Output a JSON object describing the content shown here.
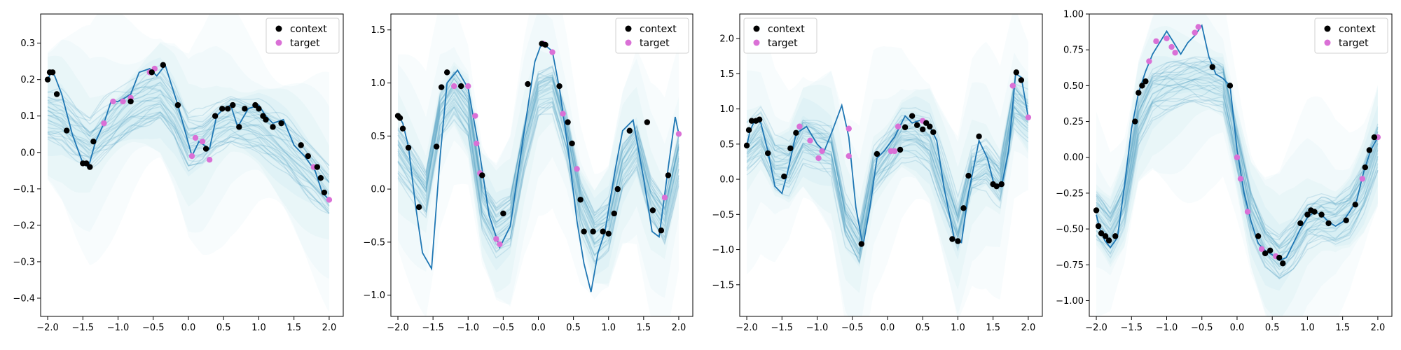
{
  "chart_data": [
    {
      "type": "line",
      "xlim": [
        -2.1,
        2.2
      ],
      "ylim": [
        -0.45,
        0.38
      ],
      "xticks": [
        -2.0,
        -1.5,
        -1.0,
        -0.5,
        0.0,
        0.5,
        1.0,
        1.5,
        2.0
      ],
      "xtick_labels": [
        "−2.0",
        "−1.5",
        "−1.0",
        "−0.5",
        "0.0",
        "0.5",
        "1.0",
        "1.5",
        "2.0"
      ],
      "yticks": [
        -0.4,
        -0.3,
        -0.2,
        -0.1,
        0.0,
        0.1,
        0.2,
        0.3
      ],
      "ytick_labels": [
        "−0.4",
        "−0.3",
        "−0.2",
        "−0.1",
        "0.0",
        "0.1",
        "0.2",
        "0.3"
      ],
      "legend": {
        "placement": "top-right",
        "entries": [
          "context",
          "target"
        ]
      },
      "colors": {
        "context": "#000000",
        "target": "#da70d6",
        "truth": "#1f77b4",
        "samples": "#2e86b5",
        "band": "#bfe6ee"
      },
      "samples": 28,
      "truth": {
        "x": [
          -2.0,
          -1.95,
          -1.9,
          -1.8,
          -1.65,
          -1.5,
          -1.42,
          -1.32,
          -1.2,
          -1.1,
          -1.0,
          -0.9,
          -0.82,
          -0.7,
          -0.55,
          -0.45,
          -0.33,
          -0.15,
          0.05,
          0.15,
          0.3,
          0.4,
          0.5,
          0.6,
          0.7,
          0.85,
          1.0,
          1.1,
          1.2,
          1.35,
          1.5,
          1.65,
          1.8,
          1.9,
          2.0
        ],
        "y": [
          0.2,
          0.22,
          0.21,
          0.16,
          0.05,
          -0.03,
          -0.04,
          0.03,
          0.08,
          0.14,
          0.14,
          0.15,
          0.16,
          0.22,
          0.23,
          0.21,
          0.24,
          0.13,
          -0.01,
          0.03,
          0.01,
          0.1,
          0.12,
          0.13,
          0.07,
          0.12,
          0.13,
          0.1,
          0.08,
          0.09,
          0.02,
          -0.01,
          -0.05,
          -0.11,
          -0.13
        ]
      },
      "mean": {
        "x": [
          -2.0,
          -1.8,
          -1.6,
          -1.4,
          -1.2,
          -1.0,
          -0.8,
          -0.6,
          -0.4,
          -0.2,
          0.0,
          0.2,
          0.4,
          0.6,
          0.8,
          1.0,
          1.2,
          1.4,
          1.6,
          1.8,
          2.0
        ],
        "y": [
          0.1,
          0.09,
          0.05,
          0.02,
          0.06,
          0.09,
          0.12,
          0.14,
          0.15,
          0.1,
          0.02,
          0.03,
          0.07,
          0.09,
          0.08,
          0.07,
          0.04,
          0.01,
          -0.03,
          -0.07,
          -0.11
        ]
      },
      "context_points": {
        "x": [
          -2.0,
          -1.97,
          -1.93,
          -1.87,
          -1.73,
          -1.5,
          -1.45,
          -1.4,
          -1.35,
          -0.82,
          -0.52,
          -0.36,
          -0.15,
          0.25,
          0.38,
          0.48,
          0.56,
          0.63,
          0.72,
          0.8,
          0.95,
          1.0,
          1.06,
          1.1,
          1.2,
          1.32,
          1.6,
          1.7,
          1.83,
          1.88,
          1.93
        ],
        "y": [
          0.2,
          0.22,
          0.22,
          0.16,
          0.06,
          -0.03,
          -0.03,
          -0.04,
          0.03,
          0.14,
          0.22,
          0.24,
          0.13,
          0.01,
          0.1,
          0.12,
          0.12,
          0.13,
          0.07,
          0.12,
          0.13,
          0.12,
          0.1,
          0.09,
          0.07,
          0.08,
          0.02,
          -0.01,
          -0.04,
          -0.07,
          -0.11
        ]
      },
      "target_points": {
        "x": [
          -1.2,
          -1.07,
          -0.93,
          -0.82,
          -0.55,
          -0.48,
          0.05,
          0.1,
          0.2,
          0.3,
          1.78,
          2.0
        ],
        "y": [
          0.08,
          0.14,
          0.14,
          0.15,
          0.22,
          0.23,
          -0.01,
          0.04,
          0.03,
          -0.02,
          -0.04,
          -0.13
        ]
      }
    },
    {
      "type": "line",
      "xlim": [
        -2.1,
        2.2
      ],
      "ylim": [
        -1.2,
        1.65
      ],
      "xticks": [
        -2.0,
        -1.5,
        -1.0,
        -0.5,
        0.0,
        0.5,
        1.0,
        1.5,
        2.0
      ],
      "xtick_labels": [
        "−2.0",
        "−1.5",
        "−1.0",
        "−0.5",
        "0.0",
        "0.5",
        "1.0",
        "1.5",
        "2.0"
      ],
      "yticks": [
        -1.0,
        -0.5,
        0.0,
        0.5,
        1.0,
        1.5
      ],
      "ytick_labels": [
        "−1.0",
        "−0.5",
        "0.0",
        "0.5",
        "1.0",
        "1.5"
      ],
      "legend": {
        "placement": "top-right",
        "entries": [
          "context",
          "target"
        ]
      },
      "colors": {
        "context": "#000000",
        "target": "#da70d6",
        "truth": "#1f77b4",
        "samples": "#2e86b5",
        "band": "#bfe6ee"
      },
      "samples": 28,
      "truth": {
        "x": [
          -2.0,
          -1.93,
          -1.85,
          -1.75,
          -1.65,
          -1.52,
          -1.4,
          -1.3,
          -1.15,
          -1.0,
          -0.85,
          -0.7,
          -0.55,
          -0.4,
          -0.2,
          -0.05,
          0.05,
          0.2,
          0.3,
          0.42,
          0.55,
          0.65,
          0.75,
          0.85,
          0.95,
          1.1,
          1.2,
          1.35,
          1.5,
          1.62,
          1.72,
          1.85,
          1.95,
          2.0
        ],
        "y": [
          0.7,
          0.62,
          0.4,
          -0.15,
          -0.6,
          -0.75,
          0.3,
          1.0,
          1.12,
          0.95,
          0.4,
          -0.25,
          -0.55,
          -0.35,
          0.55,
          1.2,
          1.38,
          1.3,
          0.95,
          0.4,
          -0.3,
          -0.7,
          -0.97,
          -0.6,
          -0.4,
          0.2,
          0.55,
          0.65,
          0.1,
          -0.4,
          -0.45,
          0.2,
          0.68,
          0.52
        ]
      },
      "mean": {
        "x": [
          -2.0,
          -1.8,
          -1.6,
          -1.4,
          -1.2,
          -1.0,
          -0.8,
          -0.6,
          -0.4,
          -0.2,
          0.0,
          0.2,
          0.4,
          0.6,
          0.8,
          1.0,
          1.2,
          1.4,
          1.6,
          1.8,
          2.0
        ],
        "y": [
          0.35,
          0.15,
          -0.05,
          0.7,
          0.9,
          0.7,
          -0.15,
          -0.4,
          -0.3,
          0.4,
          0.9,
          0.95,
          0.5,
          -0.15,
          -0.45,
          -0.35,
          0.2,
          0.4,
          -0.1,
          -0.3,
          0.3
        ]
      },
      "context_points": {
        "x": [
          -2.0,
          -1.97,
          -1.93,
          -1.85,
          -1.7,
          -1.45,
          -1.38,
          -1.3,
          -1.1,
          -0.8,
          -0.5,
          -0.15,
          0.05,
          0.1,
          0.3,
          0.42,
          0.48,
          0.6,
          0.65,
          0.78,
          0.92,
          1.0,
          1.08,
          1.13,
          1.3,
          1.55,
          1.63,
          1.75,
          1.85
        ],
        "y": [
          0.69,
          0.67,
          0.57,
          0.39,
          -0.17,
          0.4,
          0.96,
          1.1,
          0.97,
          0.13,
          -0.23,
          0.99,
          1.37,
          1.36,
          0.97,
          0.63,
          0.43,
          -0.1,
          -0.4,
          -0.4,
          -0.4,
          -0.42,
          -0.23,
          0.0,
          0.55,
          0.63,
          -0.2,
          -0.39,
          0.13
        ]
      },
      "target_points": {
        "x": [
          -1.2,
          -1.0,
          -0.9,
          -0.88,
          -0.83,
          -0.6,
          -0.55,
          0.07,
          0.2,
          0.35,
          0.55,
          1.8,
          2.0
        ],
        "y": [
          0.97,
          0.97,
          0.69,
          0.43,
          0.15,
          -0.47,
          -0.52,
          1.37,
          1.29,
          0.71,
          0.19,
          -0.08,
          0.52
        ]
      }
    },
    {
      "type": "line",
      "xlim": [
        -2.1,
        2.2
      ],
      "ylim": [
        -1.95,
        2.35
      ],
      "xticks": [
        -2.0,
        -1.5,
        -1.0,
        -0.5,
        0.0,
        0.5,
        1.0,
        1.5,
        2.0
      ],
      "xtick_labels": [
        "−2.0",
        "−1.5",
        "−1.0",
        "−0.5",
        "0.0",
        "0.5",
        "1.0",
        "1.5",
        "2.0"
      ],
      "yticks": [
        -1.5,
        -1.0,
        -0.5,
        0.0,
        0.5,
        1.0,
        1.5,
        2.0
      ],
      "ytick_labels": [
        "−1.5",
        "−1.0",
        "−0.5",
        "0.0",
        "0.5",
        "1.0",
        "1.5",
        "2.0"
      ],
      "legend": {
        "placement": "top-left",
        "entries": [
          "context",
          "target"
        ]
      },
      "colors": {
        "context": "#000000",
        "target": "#da70d6",
        "truth": "#1f77b4",
        "samples": "#2e86b5",
        "band": "#bfe6ee"
      },
      "samples": 28,
      "truth": {
        "x": [
          -2.0,
          -1.95,
          -1.88,
          -1.8,
          -1.7,
          -1.6,
          -1.5,
          -1.42,
          -1.3,
          -1.15,
          -1.0,
          -0.9,
          -0.78,
          -0.65,
          -0.55,
          -0.45,
          -0.35,
          -0.25,
          -0.15,
          -0.05,
          0.1,
          0.25,
          0.35,
          0.5,
          0.6,
          0.7,
          0.8,
          0.95,
          1.05,
          1.15,
          1.3,
          1.42,
          1.52,
          1.62,
          1.72,
          1.82,
          1.9,
          2.0
        ],
        "y": [
          0.48,
          0.7,
          0.85,
          0.8,
          0.4,
          -0.1,
          -0.2,
          0.1,
          0.65,
          0.75,
          0.5,
          0.4,
          0.7,
          1.05,
          0.6,
          -0.4,
          -0.95,
          -0.4,
          0.3,
          0.4,
          0.6,
          0.9,
          0.8,
          0.85,
          0.75,
          0.55,
          -0.1,
          -0.85,
          -0.9,
          -0.2,
          0.55,
          0.3,
          -0.1,
          -0.1,
          0.4,
          1.5,
          1.45,
          0.88
        ]
      },
      "mean": {
        "x": [
          -2.0,
          -1.8,
          -1.6,
          -1.4,
          -1.2,
          -1.0,
          -0.8,
          -0.6,
          -0.4,
          -0.2,
          0.0,
          0.2,
          0.4,
          0.6,
          0.8,
          1.0,
          1.2,
          1.4,
          1.6,
          1.8,
          2.0
        ],
        "y": [
          0.4,
          0.6,
          0.2,
          0.2,
          0.6,
          0.5,
          0.4,
          -0.6,
          -0.95,
          0.1,
          0.35,
          0.65,
          0.65,
          0.5,
          -0.1,
          -0.7,
          0.1,
          0.2,
          -0.05,
          1.1,
          0.9
        ]
      },
      "context_points": {
        "x": [
          -2.0,
          -1.97,
          -1.93,
          -1.87,
          -1.82,
          -1.7,
          -1.47,
          -1.38,
          -1.3,
          -0.37,
          -0.15,
          0.18,
          0.25,
          0.35,
          0.42,
          0.5,
          0.55,
          0.6,
          0.65,
          0.92,
          1.0,
          1.08,
          1.15,
          1.3,
          1.5,
          1.55,
          1.62,
          1.83,
          1.9
        ],
        "y": [
          0.48,
          0.7,
          0.83,
          0.83,
          0.85,
          0.37,
          0.04,
          0.44,
          0.66,
          -0.92,
          0.36,
          0.42,
          0.74,
          0.9,
          0.77,
          0.71,
          0.8,
          0.75,
          0.67,
          -0.85,
          -0.88,
          -0.41,
          0.05,
          0.61,
          -0.07,
          -0.1,
          -0.07,
          1.52,
          1.41
        ]
      },
      "target_points": {
        "x": [
          -1.25,
          -1.1,
          -0.98,
          -0.93,
          -0.55,
          -0.55,
          0.05,
          0.1,
          0.15,
          0.5,
          1.78,
          2.0
        ],
        "y": [
          0.75,
          0.55,
          0.3,
          0.4,
          0.72,
          0.33,
          0.4,
          0.4,
          0.75,
          0.83,
          1.33,
          0.88
        ]
      }
    },
    {
      "type": "line",
      "xlim": [
        -2.1,
        2.2
      ],
      "ylim": [
        -1.11,
        1.0
      ],
      "xticks": [
        -2.0,
        -1.5,
        -1.0,
        -0.5,
        0.0,
        0.5,
        1.0,
        1.5,
        2.0
      ],
      "xtick_labels": [
        "−2.0",
        "−1.5",
        "−1.0",
        "−0.5",
        "0.0",
        "0.5",
        "1.0",
        "1.5",
        "2.0"
      ],
      "yticks": [
        -1.0,
        -0.75,
        -0.5,
        -0.25,
        0.0,
        0.25,
        0.5,
        0.75,
        1.0
      ],
      "ytick_labels": [
        "−1.00",
        "−0.75",
        "−0.50",
        "−0.25",
        "0.00",
        "0.25",
        "0.50",
        "0.75",
        "1.00"
      ],
      "legend": {
        "placement": "top-right",
        "entries": [
          "context",
          "target"
        ]
      },
      "colors": {
        "context": "#000000",
        "target": "#da70d6",
        "truth": "#1f77b4",
        "samples": "#2e86b5",
        "band": "#bfe6ee"
      },
      "samples": 28,
      "truth": {
        "x": [
          -2.0,
          -1.95,
          -1.88,
          -1.8,
          -1.7,
          -1.6,
          -1.5,
          -1.4,
          -1.3,
          -1.2,
          -1.1,
          -1.0,
          -0.9,
          -0.8,
          -0.7,
          -0.6,
          -0.5,
          -0.4,
          -0.3,
          -0.2,
          -0.1,
          0.0,
          0.1,
          0.2,
          0.3,
          0.4,
          0.5,
          0.6,
          0.7,
          0.8,
          0.9,
          1.0,
          1.1,
          1.2,
          1.3,
          1.4,
          1.5,
          1.6,
          1.7,
          1.8,
          1.9,
          2.0
        ],
        "y": [
          -0.4,
          -0.5,
          -0.58,
          -0.63,
          -0.56,
          -0.2,
          0.2,
          0.45,
          0.6,
          0.72,
          0.8,
          0.88,
          0.8,
          0.72,
          0.8,
          0.85,
          0.92,
          0.7,
          0.58,
          0.55,
          0.5,
          0.05,
          -0.25,
          -0.45,
          -0.6,
          -0.65,
          -0.68,
          -0.72,
          -0.7,
          -0.6,
          -0.5,
          -0.42,
          -0.38,
          -0.4,
          -0.45,
          -0.48,
          -0.45,
          -0.38,
          -0.3,
          -0.1,
          0.05,
          0.14
        ]
      },
      "mean": {
        "x": [
          -2.0,
          -1.8,
          -1.6,
          -1.4,
          -1.2,
          -1.0,
          -0.8,
          -0.6,
          -0.4,
          -0.2,
          0.0,
          0.2,
          0.4,
          0.6,
          0.8,
          1.0,
          1.2,
          1.4,
          1.6,
          1.8,
          2.0
        ],
        "y": [
          -0.4,
          -0.52,
          -0.3,
          0.25,
          0.45,
          0.5,
          0.52,
          0.55,
          0.55,
          0.5,
          0.05,
          -0.4,
          -0.62,
          -0.7,
          -0.6,
          -0.45,
          -0.42,
          -0.45,
          -0.38,
          -0.2,
          0.08
        ]
      },
      "context_points": {
        "x": [
          -2.0,
          -1.97,
          -1.93,
          -1.87,
          -1.82,
          -1.73,
          -1.45,
          -1.4,
          -1.35,
          -1.3,
          -0.35,
          -0.1,
          0.3,
          0.4,
          0.47,
          0.6,
          0.65,
          0.9,
          1.0,
          1.05,
          1.1,
          1.2,
          1.3,
          1.55,
          1.68,
          1.82,
          1.88,
          1.95
        ],
        "y": [
          -0.37,
          -0.48,
          -0.53,
          -0.55,
          -0.58,
          -0.55,
          0.25,
          0.45,
          0.5,
          0.53,
          0.63,
          0.5,
          -0.55,
          -0.67,
          -0.65,
          -0.7,
          -0.74,
          -0.46,
          -0.4,
          -0.37,
          -0.38,
          -0.4,
          -0.46,
          -0.44,
          -0.33,
          -0.07,
          0.05,
          0.14
        ]
      },
      "target_points": {
        "x": [
          -1.25,
          -1.15,
          -1.0,
          -0.93,
          -0.88,
          -0.6,
          -0.55,
          0.0,
          0.05,
          0.15,
          0.35,
          0.55,
          1.78,
          2.0
        ],
        "y": [
          0.67,
          0.81,
          0.83,
          0.77,
          0.73,
          0.87,
          0.91,
          0.0,
          -0.15,
          -0.38,
          -0.64,
          -0.69,
          -0.15,
          0.14
        ]
      }
    }
  ]
}
